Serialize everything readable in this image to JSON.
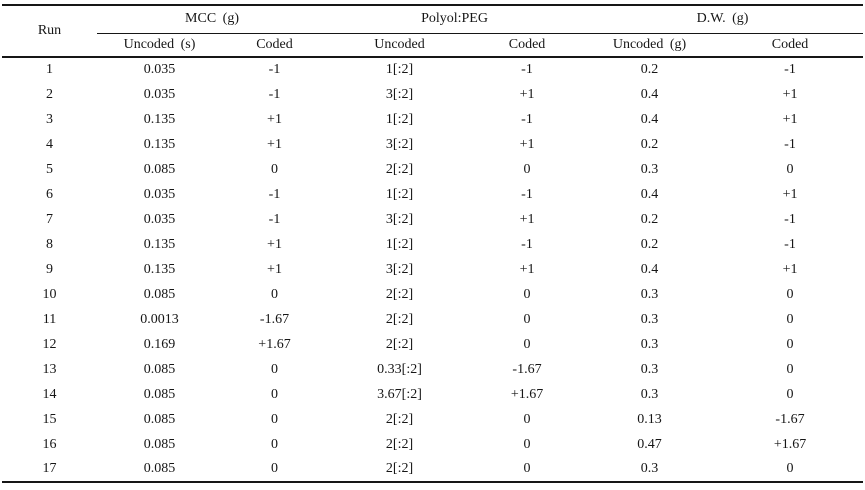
{
  "table": {
    "run_header": "Run",
    "groups": [
      {
        "label": "MCC (g)",
        "subcols": [
          "Uncoded (s)",
          "Coded"
        ]
      },
      {
        "label": "Polyol:PEG",
        "subcols": [
          "Uncoded",
          "Coded"
        ]
      },
      {
        "label": "D.W. (g)",
        "subcols": [
          "Uncoded (g)",
          "Coded"
        ]
      }
    ],
    "rows": [
      [
        "1",
        "0.035",
        "-1",
        "1[:2]",
        "-1",
        "0.2",
        "-1"
      ],
      [
        "2",
        "0.035",
        "-1",
        "3[:2]",
        "+1",
        "0.4",
        "+1"
      ],
      [
        "3",
        "0.135",
        "+1",
        "1[:2]",
        "-1",
        "0.4",
        "+1"
      ],
      [
        "4",
        "0.135",
        "+1",
        "3[:2]",
        "+1",
        "0.2",
        "-1"
      ],
      [
        "5",
        "0.085",
        "0",
        "2[:2]",
        "0",
        "0.3",
        "0"
      ],
      [
        "6",
        "0.035",
        "-1",
        "1[:2]",
        "-1",
        "0.4",
        "+1"
      ],
      [
        "7",
        "0.035",
        "-1",
        "3[:2]",
        "+1",
        "0.2",
        "-1"
      ],
      [
        "8",
        "0.135",
        "+1",
        "1[:2]",
        "-1",
        "0.2",
        "-1"
      ],
      [
        "9",
        "0.135",
        "+1",
        "3[:2]",
        "+1",
        "0.4",
        "+1"
      ],
      [
        "10",
        "0.085",
        "0",
        "2[:2]",
        "0",
        "0.3",
        "0"
      ],
      [
        "11",
        "0.0013",
        "-1.67",
        "2[:2]",
        "0",
        "0.3",
        "0"
      ],
      [
        "12",
        "0.169",
        "+1.67",
        "2[:2]",
        "0",
        "0.3",
        "0"
      ],
      [
        "13",
        "0.085",
        "0",
        "0.33[:2]",
        "-1.67",
        "0.3",
        "0"
      ],
      [
        "14",
        "0.085",
        "0",
        "3.67[:2]",
        "+1.67",
        "0.3",
        "0"
      ],
      [
        "15",
        "0.085",
        "0",
        "2[:2]",
        "0",
        "0.13",
        "-1.67"
      ],
      [
        "16",
        "0.085",
        "0",
        "2[:2]",
        "0",
        "0.47",
        "+1.67"
      ],
      [
        "17",
        "0.085",
        "0",
        "2[:2]",
        "0",
        "0.3",
        "0"
      ]
    ]
  }
}
